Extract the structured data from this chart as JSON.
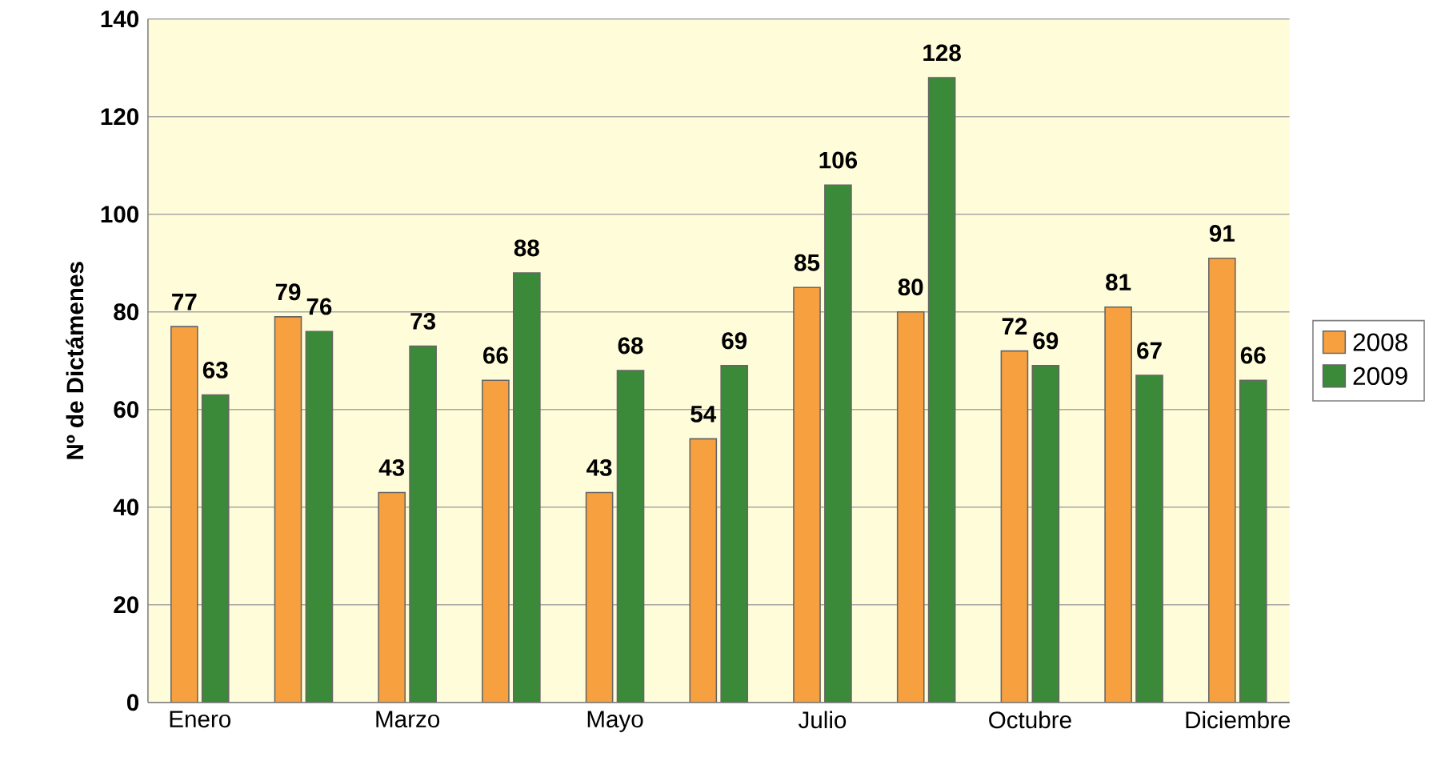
{
  "chart_data": {
    "type": "bar",
    "ylabel": "Nº de Dictámenes",
    "categories": [
      "Enero",
      null,
      "Marzo",
      null,
      "Mayo",
      null,
      "Julio",
      null,
      "Octubre",
      null,
      "Diciembre"
    ],
    "series": [
      {
        "name": "2008",
        "color": "#f7a040",
        "values": [
          77,
          79,
          43,
          66,
          43,
          54,
          85,
          80,
          72,
          81,
          91
        ]
      },
      {
        "name": "2009",
        "color": "#3a8a3a",
        "values": [
          63,
          76,
          73,
          88,
          68,
          69,
          106,
          128,
          69,
          67,
          66
        ]
      }
    ],
    "ylim": [
      0,
      140
    ],
    "yticks": [
      0,
      20,
      40,
      60,
      80,
      100,
      120,
      140
    ],
    "grid": "y",
    "legend": "right",
    "data_labels": true
  }
}
